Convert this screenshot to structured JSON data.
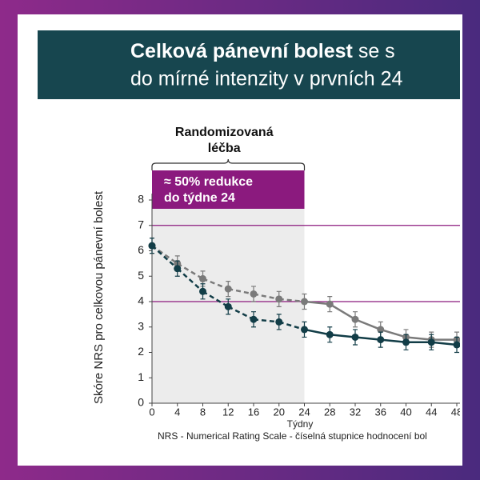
{
  "header": {
    "title_bold": "Celková pánevní bolest",
    "title_rest": " se s",
    "title_line2": "do mírné intenzity v prvních 24"
  },
  "chart_data": {
    "type": "line",
    "xlabel": "Týdny",
    "ylabel": "Skóre NRS pro celkovou pánevní bolest",
    "footnote": "NRS - Numerical Rating Scale - číselná stupnice hodnocení bol",
    "bracket_label": [
      "Randomizovaná",
      "léčba"
    ],
    "box_label": [
      "≈ 50% redukce",
      "do týdne 24"
    ],
    "shaded_region": [
      0,
      24
    ],
    "reference_lines": [
      7,
      4
    ],
    "reference_color": "#8b1a7e",
    "dashed_until": 24,
    "x": [
      0,
      4,
      8,
      12,
      16,
      20,
      24,
      28,
      32,
      36,
      40,
      44,
      48
    ],
    "series": [
      {
        "color": "#7a7a7a",
        "values": [
          6.2,
          5.5,
          4.9,
          4.5,
          4.3,
          4.1,
          4.0,
          3.9,
          3.3,
          2.9,
          2.6,
          2.5,
          2.5
        ],
        "errors": [
          0.3,
          0.3,
          0.3,
          0.3,
          0.3,
          0.3,
          0.3,
          0.3,
          0.3,
          0.3,
          0.3,
          0.3,
          0.3
        ]
      },
      {
        "color": "#123d47",
        "values": [
          6.2,
          5.3,
          4.4,
          3.8,
          3.3,
          3.2,
          2.9,
          2.7,
          2.6,
          2.5,
          2.4,
          2.4,
          2.3
        ],
        "errors": [
          0.3,
          0.3,
          0.3,
          0.3,
          0.3,
          0.3,
          0.3,
          0.3,
          0.3,
          0.3,
          0.3,
          0.3,
          0.3
        ]
      }
    ],
    "xlim": [
      0,
      48
    ],
    "ylim": [
      0,
      8
    ],
    "xticks": [
      0,
      4,
      8,
      12,
      16,
      20,
      24,
      28,
      32,
      36,
      40,
      44,
      48
    ],
    "yticks": [
      0,
      1,
      2,
      3,
      4,
      5,
      6,
      7,
      8
    ]
  }
}
